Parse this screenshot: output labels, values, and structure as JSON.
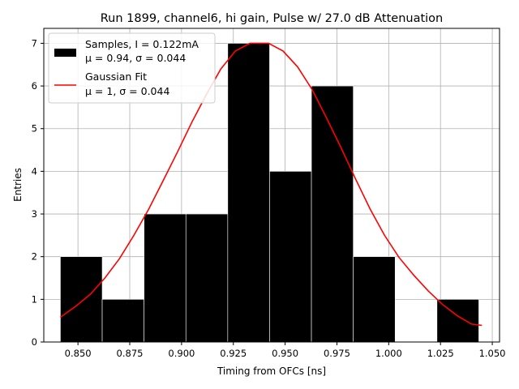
{
  "chart_data": {
    "type": "bar",
    "title": "Run 1899, channel6, hi gain, Pulse w/ 27.0 dB Attenuation",
    "xlabel": "Timing from OFCs [ns]",
    "ylabel": "Entries",
    "xlim": [
      0.8335,
      1.0535
    ],
    "ylim": [
      0,
      7.35
    ],
    "xticks": [
      0.85,
      0.875,
      0.9,
      0.925,
      0.95,
      0.975,
      1.0,
      1.025,
      1.05
    ],
    "xtick_labels": [
      "0.850",
      "0.875",
      "0.900",
      "0.925",
      "0.950",
      "0.975",
      "1.000",
      "1.025",
      "1.050"
    ],
    "yticks": [
      0,
      1,
      2,
      3,
      4,
      5,
      6,
      7
    ],
    "ytick_labels": [
      "0",
      "1",
      "2",
      "3",
      "4",
      "5",
      "6",
      "7"
    ],
    "grid": true,
    "legend_position": "top-left",
    "bar_color": "#000000",
    "fit_color": "#ff0000",
    "histogram": {
      "name": "Samples, I = 0.122mA",
      "stats": "μ = 0.94, σ = 0.044",
      "bin_edges": [
        0.8415,
        0.8617,
        0.8819,
        0.9021,
        0.9223,
        0.9425,
        0.9627,
        0.9829,
        1.0031,
        1.0233,
        1.0435
      ],
      "counts": [
        2,
        1,
        3,
        3,
        7,
        4,
        6,
        2,
        0,
        1
      ]
    },
    "fit": {
      "name": "Gaussian Fit",
      "stats": "μ = 1, σ = 0.044",
      "x": [
        0.8415,
        0.849,
        0.856,
        0.863,
        0.87,
        0.877,
        0.884,
        0.891,
        0.898,
        0.905,
        0.912,
        0.919,
        0.926,
        0.933,
        0.937,
        0.942,
        0.949,
        0.956,
        0.963,
        0.97,
        0.977,
        0.984,
        0.991,
        0.998,
        1.005,
        1.012,
        1.019,
        1.026,
        1.033,
        1.04,
        1.045
      ],
      "y": [
        0.58,
        0.84,
        1.12,
        1.5,
        1.95,
        2.5,
        3.1,
        3.77,
        4.45,
        5.15,
        5.8,
        6.4,
        6.82,
        7.0,
        7.0,
        7.0,
        6.82,
        6.45,
        5.92,
        5.25,
        4.55,
        3.82,
        3.12,
        2.5,
        1.98,
        1.57,
        1.2,
        0.88,
        0.62,
        0.42,
        0.39
      ]
    }
  }
}
